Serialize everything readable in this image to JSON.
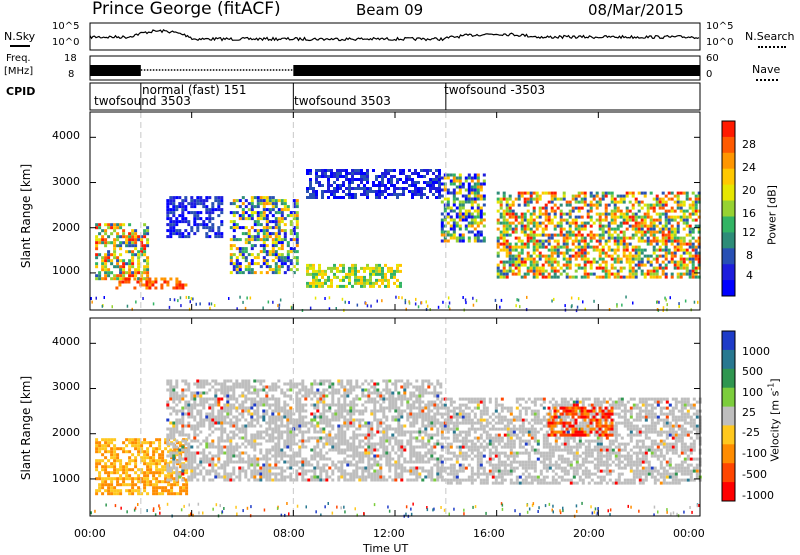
{
  "header": {
    "station": "Prince George (fitACF)",
    "beam": "Beam 09",
    "date": "08/Mar/2015"
  },
  "noise_panel": {
    "left_label": "N.Sky",
    "left_ticks": [
      "10^5",
      "10^0"
    ],
    "right_ticks": [
      "10^5",
      "10^0"
    ],
    "right_label": "N.Search"
  },
  "freq_panel": {
    "left_label_1": "Freq.",
    "left_label_2": "[MHz]",
    "left_ticks": [
      "18",
      "8"
    ],
    "right_ticks": [
      "60",
      "0"
    ],
    "right_label": "Nave"
  },
  "cpid": {
    "label": "CPID",
    "segments": [
      {
        "name": "twofsound 3503",
        "start_h": 0.0
      },
      {
        "name": "normal (fast) 151",
        "start_h": 2.0
      },
      {
        "name": "twofsound 3503",
        "start_h": 8.0
      },
      {
        "name": "twofsound -3503",
        "start_h": 14.0
      }
    ]
  },
  "colorbars": {
    "power": {
      "label": "Power [dB]",
      "ticks": [
        "28",
        "24",
        "20",
        "16",
        "12",
        "8",
        "4"
      ],
      "colors": [
        "#ff1a00",
        "#ff5a00",
        "#ff9600",
        "#ffc800",
        "#e6e600",
        "#96d232",
        "#32b464",
        "#2d8c78",
        "#2850b4",
        "#1e1edc",
        "#0000ff"
      ]
    },
    "velocity": {
      "label_main": "Velocity  [m s",
      "label_sup": "-1",
      "label_end": "]",
      "ticks": [
        "1000",
        "500",
        "100",
        "25",
        "-25",
        "-100",
        "-500",
        "-1000"
      ],
      "colors": [
        "#1e3cc8",
        "#287890",
        "#2f9650",
        "#7ccd3c",
        "#bebebe",
        "#ffc81e",
        "#ff8c00",
        "#ff4600",
        "#ff0000"
      ]
    }
  },
  "chart_data": {
    "type": "heatmap",
    "xlabel": "Time UT",
    "ylabel_top": "Slant Range [km]",
    "ylabel_bottom": "Slant Range [km]",
    "x_ticks": [
      "00:00",
      "04:00",
      "08:00",
      "12:00",
      "16:00",
      "20:00",
      "00:00"
    ],
    "x_range_hours": [
      0,
      24
    ],
    "y_ticks": [
      "1000",
      "2000",
      "3000",
      "4000"
    ],
    "y_range_km": [
      180,
      4560
    ],
    "mode_change_hours": [
      2.0,
      8.0,
      14.0
    ],
    "power_regions": [
      {
        "t": [
          0.2,
          2.3
        ],
        "r": [
          900,
          2100
        ],
        "level": "mixed-high"
      },
      {
        "t": [
          1.0,
          3.8
        ],
        "r": [
          650,
          900
        ],
        "level": "high"
      },
      {
        "t": [
          3.0,
          5.2
        ],
        "r": [
          1800,
          2700
        ],
        "level": "low"
      },
      {
        "t": [
          5.5,
          8.2
        ],
        "r": [
          1000,
          2700
        ],
        "level": "mixed"
      },
      {
        "t": [
          8.5,
          12.2
        ],
        "r": [
          700,
          1200
        ],
        "level": "medium"
      },
      {
        "t": [
          8.5,
          13.8
        ],
        "r": [
          2700,
          3300
        ],
        "level": "low"
      },
      {
        "t": [
          13.8,
          15.5
        ],
        "r": [
          1700,
          3200
        ],
        "level": "mixed"
      },
      {
        "t": [
          16.0,
          24.0
        ],
        "r": [
          900,
          2800
        ],
        "level": "mixed-high"
      }
    ],
    "velocity_regions": [
      {
        "t": [
          0.2,
          3.8
        ],
        "r": [
          700,
          1900
        ],
        "level": "-100 to -500"
      },
      {
        "t": [
          3.0,
          13.8
        ],
        "r": [
          1000,
          3200
        ],
        "level": "-25 to 25"
      },
      {
        "t": [
          13.8,
          24.0
        ],
        "r": [
          900,
          2800
        ],
        "level": "-25 to 25"
      },
      {
        "t": [
          18.0,
          20.5
        ],
        "r": [
          2000,
          2600
        ],
        "level": "-500 to -1000"
      }
    ]
  }
}
